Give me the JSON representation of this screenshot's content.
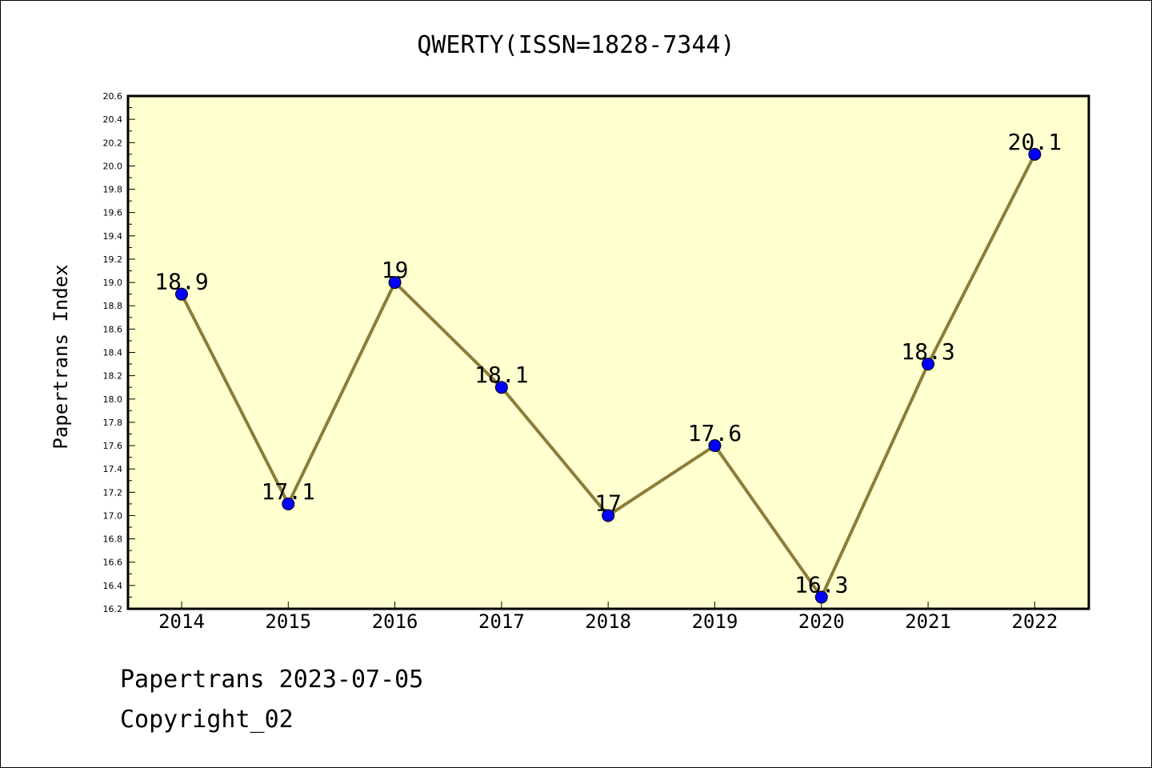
{
  "chart_data": {
    "type": "line",
    "title": "QWERTY(ISSN=1828-7344)",
    "xlabel": "",
    "ylabel": "Papertrans Index",
    "categories": [
      "2014",
      "2015",
      "2016",
      "2017",
      "2018",
      "2019",
      "2020",
      "2021",
      "2022"
    ],
    "values": [
      18.9,
      17.1,
      19,
      18.1,
      17,
      17.6,
      16.3,
      18.3,
      20.1
    ],
    "data_labels": [
      "18.9",
      "17.1",
      "19",
      "18.1",
      "17",
      "17.6",
      "16.3",
      "18.3",
      "20.1"
    ],
    "ylim": [
      16.2,
      20.6
    ],
    "yticks": [
      "16.2",
      "16.4",
      "16.6",
      "16.8",
      "17.0",
      "17.2",
      "17.4",
      "17.6",
      "17.8",
      "18.0",
      "18.2",
      "18.4",
      "18.6",
      "18.8",
      "19.0",
      "19.2",
      "19.4",
      "19.6",
      "19.8",
      "20.0",
      "20.2",
      "20.4",
      "20.6"
    ],
    "grid": false,
    "legend": "none",
    "colors": {
      "plot_background": "#ffffd0",
      "line": "#8b7d3a",
      "marker": "#0000ff"
    }
  },
  "footer": {
    "line1": "Papertrans 2023-07-05",
    "line2": "Copyright_02"
  }
}
